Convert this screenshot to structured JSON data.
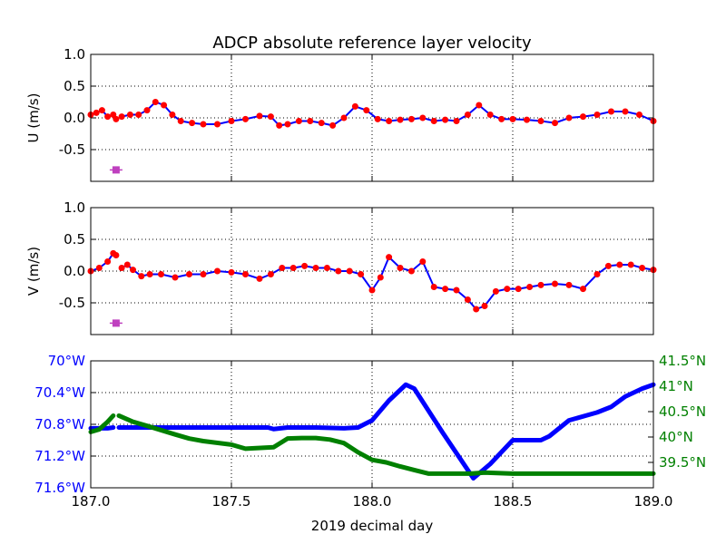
{
  "title": "ADCP absolute reference layer velocity",
  "colors": {
    "red": "#ff0000",
    "blue": "#0000ff",
    "green": "#008000",
    "magenta": "#bf40bf",
    "grid": "#000000",
    "axis": "#000000"
  },
  "chart_data": [
    {
      "type": "scatter",
      "ylabel": "U (m/s)",
      "xlim": [
        187.0,
        189.0
      ],
      "ylim": [
        -1.0,
        1.0
      ],
      "yticks": [
        "1.0",
        "0.5",
        "0.0",
        "-0.5"
      ],
      "ytick_values": [
        1.0,
        0.5,
        0.0,
        -0.5
      ],
      "xticks": [
        187.0,
        187.5,
        188.0,
        188.5,
        189.0
      ],
      "grid": true,
      "series": [
        {
          "style": "red-dots-with-blue-line",
          "segments": [
            {
              "x": [
                187.0,
                187.02,
                187.04,
                187.06,
                187.08,
                187.09
              ],
              "y": [
                0.05,
                0.08,
                0.12,
                0.02,
                0.05,
                -0.02
              ]
            },
            {
              "x": [
                187.11,
                187.14,
                187.17,
                187.2,
                187.23,
                187.26,
                187.29,
                187.32,
                187.36,
                187.4,
                187.45,
                187.5,
                187.55,
                187.6,
                187.64,
                187.67,
                187.7,
                187.74,
                187.78,
                187.82,
                187.86,
                187.9,
                187.94,
                187.98,
                188.02,
                188.06,
                188.1,
                188.14,
                188.18,
                188.22,
                188.26,
                188.3,
                188.34,
                188.38,
                188.42,
                188.46,
                188.5,
                188.55,
                188.6,
                188.65,
                188.7,
                188.75,
                188.8,
                188.85,
                188.9,
                188.95,
                189.0
              ],
              "y": [
                0.02,
                0.05,
                0.05,
                0.12,
                0.25,
                0.2,
                0.05,
                -0.05,
                -0.08,
                -0.1,
                -0.1,
                -0.05,
                -0.02,
                0.03,
                0.02,
                -0.12,
                -0.1,
                -0.05,
                -0.05,
                -0.08,
                -0.12,
                0.0,
                0.18,
                0.12,
                -0.02,
                -0.05,
                -0.03,
                -0.02,
                0.0,
                -0.05,
                -0.03,
                -0.05,
                0.05,
                0.2,
                0.05,
                -0.02,
                -0.02,
                -0.03,
                -0.05,
                -0.08,
                0.0,
                0.02,
                0.05,
                0.1,
                0.1,
                0.05,
                -0.05
              ]
            }
          ]
        },
        {
          "style": "magenta-square-errorbar",
          "x": [
            187.09
          ],
          "y": [
            -0.82
          ]
        }
      ]
    },
    {
      "type": "scatter",
      "ylabel": "V (m/s)",
      "xlim": [
        187.0,
        189.0
      ],
      "ylim": [
        -1.0,
        1.0
      ],
      "yticks": [
        "1.0",
        "0.5",
        "0.0",
        "-0.5"
      ],
      "ytick_values": [
        1.0,
        0.5,
        0.0,
        -0.5
      ],
      "xticks": [
        187.0,
        187.5,
        188.0,
        188.5,
        189.0
      ],
      "grid": true,
      "series": [
        {
          "style": "red-dots-with-blue-line",
          "segments": [
            {
              "x": [
                187.0,
                187.03,
                187.06,
                187.08,
                187.09
              ],
              "y": [
                0.0,
                0.05,
                0.15,
                0.28,
                0.25
              ]
            },
            {
              "x": [
                187.11,
                187.13,
                187.15,
                187.18,
                187.21,
                187.25,
                187.3,
                187.35,
                187.4,
                187.45,
                187.5,
                187.55,
                187.6,
                187.64,
                187.68,
                187.72,
                187.76,
                187.8,
                187.84,
                187.88,
                187.92,
                187.96,
                188.0,
                188.03,
                188.06,
                188.1,
                188.14,
                188.18,
                188.22,
                188.26,
                188.3,
                188.34,
                188.37,
                188.4,
                188.44,
                188.48,
                188.52,
                188.56,
                188.6,
                188.65,
                188.7,
                188.75,
                188.8,
                188.84,
                188.88,
                188.92,
                188.96,
                189.0
              ],
              "y": [
                0.05,
                0.1,
                0.02,
                -0.08,
                -0.05,
                -0.05,
                -0.1,
                -0.05,
                -0.05,
                0.0,
                -0.02,
                -0.05,
                -0.12,
                -0.05,
                0.05,
                0.05,
                0.08,
                0.05,
                0.05,
                0.0,
                0.0,
                -0.05,
                -0.3,
                -0.1,
                0.22,
                0.05,
                0.0,
                0.15,
                -0.25,
                -0.28,
                -0.3,
                -0.45,
                -0.6,
                -0.55,
                -0.32,
                -0.28,
                -0.28,
                -0.25,
                -0.22,
                -0.2,
                -0.22,
                -0.28,
                -0.05,
                0.08,
                0.1,
                0.1,
                0.05,
                0.02
              ]
            }
          ]
        },
        {
          "style": "magenta-square-errorbar",
          "x": [
            187.09
          ],
          "y": [
            -0.82
          ]
        }
      ]
    },
    {
      "type": "line",
      "xlabel": "2019 decimal day",
      "xlim": [
        187.0,
        189.0
      ],
      "xticks": [
        "187.0",
        "187.5",
        "188.0",
        "188.5",
        "189.0"
      ],
      "xtick_values": [
        187.0,
        187.5,
        188.0,
        188.5,
        189.0
      ],
      "grid": true,
      "left_axis": {
        "color": "blue",
        "ylim": [
          -71.6,
          -70.0
        ],
        "yticks": [
          "70°W",
          "70.4°W",
          "70.8°W",
          "71.2°W",
          "71.6°W"
        ],
        "ytick_values": [
          -70.0,
          -70.4,
          -70.8,
          -71.2,
          -71.6
        ]
      },
      "right_axis": {
        "color": "green",
        "ylim": [
          39.0,
          41.5
        ],
        "yticks": [
          "41.5°N",
          "41°N",
          "40.5°N",
          "40°N",
          "39.5°N"
        ],
        "ytick_values": [
          41.5,
          41.0,
          40.5,
          40.0,
          39.5
        ]
      },
      "series": [
        {
          "axis": "left",
          "color": "blue",
          "segments": [
            {
              "x": [
                187.0,
                187.03,
                187.06,
                187.08
              ],
              "y": [
                -70.85,
                -70.85,
                -70.85,
                -70.84
              ]
            },
            {
              "x": [
                187.1,
                187.4,
                187.6,
                187.63,
                187.65,
                187.7,
                187.8,
                187.9,
                187.95,
                188.0,
                188.06,
                188.12,
                188.15,
                188.25,
                188.36,
                188.42,
                188.5,
                188.6,
                188.63,
                188.7,
                188.8,
                188.85,
                188.9,
                188.96,
                189.0
              ],
              "y": [
                -70.84,
                -70.84,
                -70.84,
                -70.84,
                -70.86,
                -70.84,
                -70.84,
                -70.85,
                -70.84,
                -70.75,
                -70.5,
                -70.3,
                -70.35,
                -70.9,
                -71.48,
                -71.3,
                -71.0,
                -71.0,
                -70.95,
                -70.75,
                -70.65,
                -70.58,
                -70.45,
                -70.35,
                -70.3
              ]
            }
          ]
        },
        {
          "axis": "right",
          "color": "green",
          "segments": [
            {
              "x": [
                187.0,
                187.03,
                187.06,
                187.08
              ],
              "y": [
                40.1,
                40.15,
                40.3,
                40.42
              ]
            },
            {
              "x": [
                187.1,
                187.15,
                187.2,
                187.3,
                187.35,
                187.4,
                187.5,
                187.55,
                187.65,
                187.7,
                187.75,
                187.8,
                187.85,
                187.9,
                187.95,
                188.0,
                188.05,
                188.1,
                188.15,
                188.2,
                188.3,
                188.35,
                188.4,
                188.5,
                188.6,
                188.7,
                189.0
              ],
              "y": [
                40.42,
                40.3,
                40.22,
                40.05,
                39.97,
                39.92,
                39.85,
                39.77,
                39.8,
                39.97,
                39.98,
                39.98,
                39.95,
                39.88,
                39.7,
                39.55,
                39.5,
                39.42,
                39.35,
                39.28,
                39.28,
                39.28,
                39.3,
                39.28,
                39.28,
                39.28,
                39.28
              ]
            }
          ]
        }
      ]
    }
  ]
}
